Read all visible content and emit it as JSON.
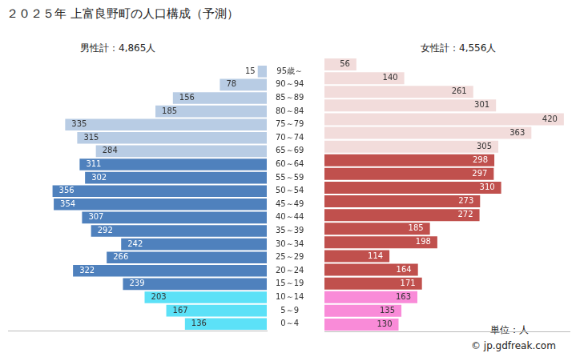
{
  "chart_data": {
    "type": "bar",
    "orientation": "horizontal",
    "title": "２０２５年 上富良野町の人口構成（予測）",
    "categories": [
      "95歳～",
      "90～94",
      "85～89",
      "80～84",
      "75～79",
      "70～74",
      "65～69",
      "60～64",
      "55～59",
      "50～54",
      "45～49",
      "40～44",
      "35～39",
      "30～34",
      "25～29",
      "20～24",
      "15～19",
      "10～14",
      "5～9",
      "0～4"
    ],
    "series": [
      {
        "name": "男性計：4,865人",
        "values": [
          15,
          78,
          156,
          185,
          335,
          315,
          284,
          311,
          302,
          356,
          354,
          307,
          292,
          242,
          266,
          322,
          239,
          203,
          167,
          136
        ],
        "colors": [
          "#b8cce4",
          "#b8cce4",
          "#b8cce4",
          "#b8cce4",
          "#b8cce4",
          "#b8cce4",
          "#b8cce4",
          "#4f81bd",
          "#4f81bd",
          "#4f81bd",
          "#4f81bd",
          "#4f81bd",
          "#4f81bd",
          "#4f81bd",
          "#4f81bd",
          "#4f81bd",
          "#4f81bd",
          "#5ce1f7",
          "#5ce1f7",
          "#5ce1f7"
        ]
      },
      {
        "name": "女性計：4,556人",
        "values": [
          56,
          140,
          261,
          301,
          420,
          363,
          305,
          298,
          297,
          310,
          273,
          272,
          185,
          198,
          114,
          164,
          171,
          163,
          135,
          130
        ],
        "colors": [
          "#f2dcdb",
          "#f2dcdb",
          "#f2dcdb",
          "#f2dcdb",
          "#f2dcdb",
          "#f2dcdb",
          "#f2dcdb",
          "#c0504d",
          "#c0504d",
          "#c0504d",
          "#c0504d",
          "#c0504d",
          "#c0504d",
          "#c0504d",
          "#c0504d",
          "#c0504d",
          "#c0504d",
          "#f98bd8",
          "#f98bd8",
          "#f98bd8"
        ]
      }
    ],
    "xlim": [
      0,
      430
    ],
    "tick_labels": "y",
    "grid": false,
    "data_labels": true,
    "annotations": [
      "単位：人",
      "© jp.gdfreak.com"
    ]
  }
}
